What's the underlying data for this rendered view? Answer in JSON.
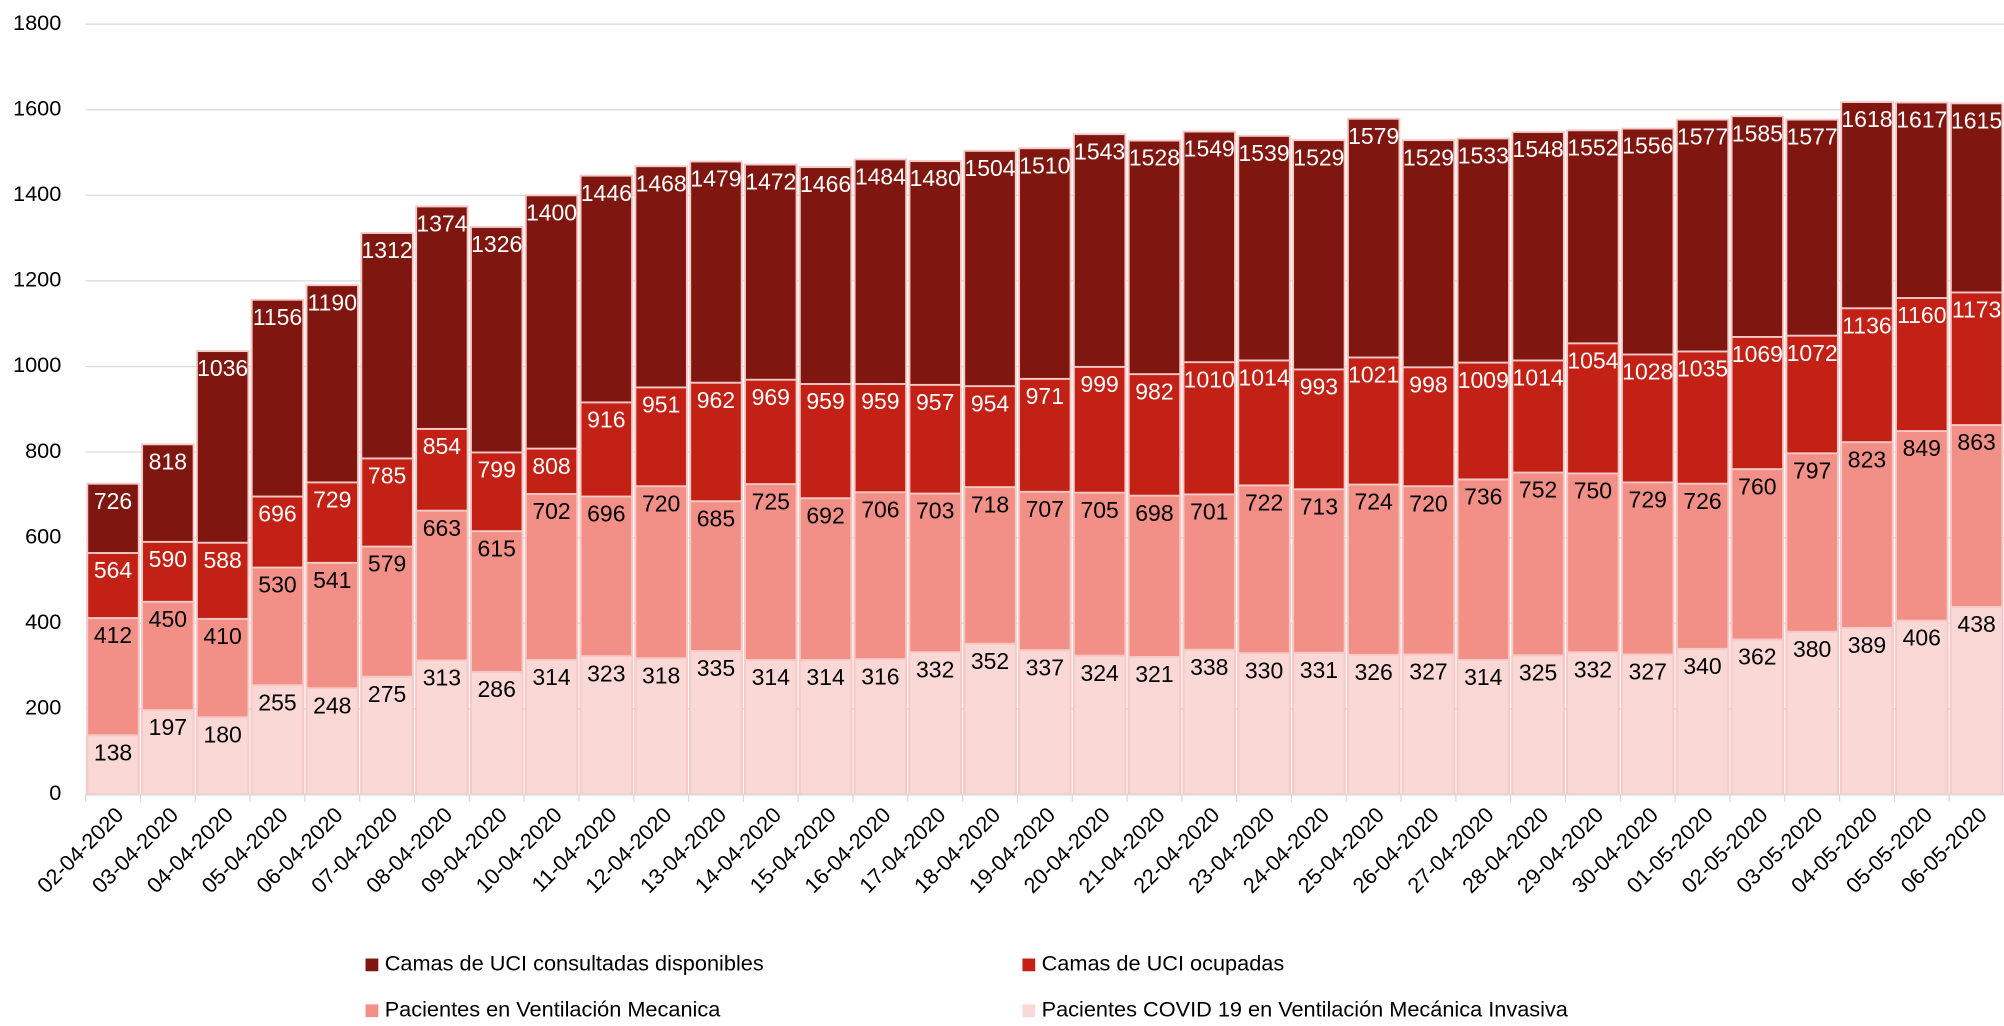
{
  "chart_data": {
    "type": "bar",
    "overlap": true,
    "categories": [
      "02-04-2020",
      "03-04-2020",
      "04-04-2020",
      "05-04-2020",
      "06-04-2020",
      "07-04-2020",
      "08-04-2020",
      "09-04-2020",
      "10-04-2020",
      "11-04-2020",
      "12-04-2020",
      "13-04-2020",
      "14-04-2020",
      "15-04-2020",
      "16-04-2020",
      "17-04-2020",
      "18-04-2020",
      "19-04-2020",
      "20-04-2020",
      "21-04-2020",
      "22-04-2020",
      "23-04-2020",
      "24-04-2020",
      "25-04-2020",
      "26-04-2020",
      "27-04-2020",
      "28-04-2020",
      "29-04-2020",
      "30-04-2020",
      "01-05-2020",
      "02-05-2020",
      "03-05-2020",
      "04-05-2020",
      "05-05-2020",
      "06-05-2020"
    ],
    "series": [
      {
        "name": "Camas de UCI consultadas disponibles",
        "color": "#7f1710",
        "label_color": "#ffffff",
        "values": [
          726,
          818,
          1036,
          1156,
          1190,
          1312,
          1374,
          1326,
          1400,
          1446,
          1468,
          1479,
          1472,
          1466,
          1484,
          1480,
          1504,
          1510,
          1543,
          1528,
          1549,
          1539,
          1529,
          1579,
          1529,
          1533,
          1548,
          1552,
          1556,
          1577,
          1585,
          1577,
          1618,
          1617,
          1615
        ]
      },
      {
        "name": "Camas de UCI ocupadas",
        "color": "#c42116",
        "label_color": "#ffffff",
        "values": [
          564,
          590,
          588,
          696,
          729,
          785,
          854,
          799,
          808,
          916,
          951,
          962,
          969,
          959,
          959,
          957,
          954,
          971,
          999,
          982,
          1010,
          1014,
          993,
          1021,
          998,
          1009,
          1014,
          1054,
          1028,
          1035,
          1069,
          1072,
          1136,
          1160,
          1173
        ]
      },
      {
        "name": "Pacientes en Ventilación Mecanica",
        "color": "#f28f87",
        "label_color": "#000000",
        "values": [
          412,
          450,
          410,
          530,
          541,
          579,
          663,
          615,
          702,
          696,
          720,
          685,
          725,
          692,
          706,
          703,
          718,
          707,
          705,
          698,
          701,
          722,
          713,
          724,
          720,
          736,
          752,
          750,
          729,
          726,
          760,
          797,
          823,
          849,
          863
        ]
      },
      {
        "name": "Pacientes COVID 19 en Ventilación Mecánica Invasiva",
        "color": "#fad8d6",
        "label_color": "#000000",
        "values": [
          138,
          197,
          180,
          255,
          248,
          275,
          313,
          286,
          314,
          323,
          318,
          335,
          314,
          314,
          316,
          332,
          352,
          337,
          324,
          321,
          338,
          330,
          331,
          326,
          327,
          314,
          325,
          332,
          327,
          340,
          362,
          380,
          389,
          406,
          438
        ]
      }
    ],
    "ylim": [
      0,
      1800
    ],
    "yticks": [
      0,
      200,
      400,
      600,
      800,
      1000,
      1200,
      1400,
      1600,
      1800
    ],
    "grid": true,
    "legend": "bottom"
  }
}
